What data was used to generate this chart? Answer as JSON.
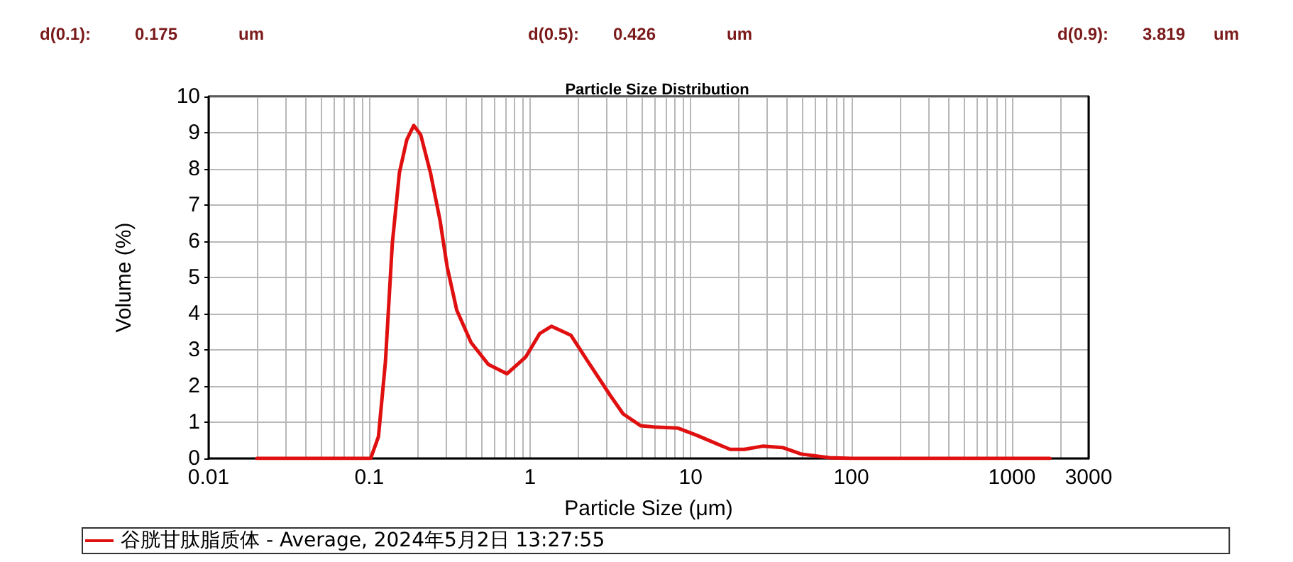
{
  "chart_data": {
    "type": "line",
    "title": "Particle Size Distribution",
    "xlabel": "Particle Size (μm)",
    "ylabel": "Volume (%)",
    "annotations": [
      "d(0.1):",
      "0.175",
      "um",
      "d(0.5):",
      "0.426",
      "um",
      "d(0.9):",
      "3.819",
      "um"
    ],
    "log": "x",
    "xlim": [
      0.01,
      3000
    ],
    "xticks": [
      0.01,
      0.1,
      1,
      10,
      100,
      1000,
      3000
    ],
    "ylim": [
      0,
      10
    ],
    "yticks": [
      0,
      1,
      2,
      3,
      4,
      5,
      6,
      7,
      8,
      9,
      10
    ],
    "grid": true,
    "legend": "bottom left",
    "marker": "none",
    "line_style": "solid",
    "series": [
      {
        "name": "谷胱甘肽脂质体 - Average, 2024年5月2日 13:27:55",
        "color": "#e01010",
        "x": [
          0.02,
          0.05,
          0.102,
          0.114,
          0.126,
          0.139,
          0.154,
          0.171,
          0.189,
          0.209,
          0.24,
          0.275,
          0.305,
          0.35,
          0.43,
          0.55,
          0.72,
          0.94,
          1.15,
          1.36,
          1.8,
          2.3,
          3.15,
          3.8,
          4.9,
          5.9,
          8.3,
          10.9,
          17.6,
          21.6,
          28.3,
          37.3,
          48.8,
          73,
          100,
          500,
          1720
        ],
        "values": [
          0,
          0,
          0,
          0.6,
          2.67,
          5.93,
          7.9,
          8.8,
          9.2,
          8.94,
          7.9,
          6.6,
          5.3,
          4.1,
          3.2,
          2.6,
          2.34,
          2.8,
          3.45,
          3.65,
          3.4,
          2.67,
          1.75,
          1.23,
          0.9,
          0.87,
          0.84,
          0.64,
          0.25,
          0.25,
          0.34,
          0.3,
          0.12,
          0.02,
          0,
          0,
          0
        ]
      }
    ]
  }
}
